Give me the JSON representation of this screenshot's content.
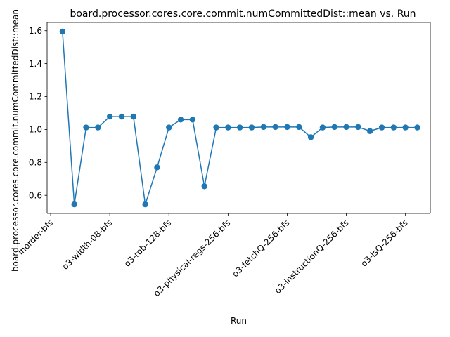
{
  "chart_data": {
    "type": "line",
    "title": "board.processor.cores.core.commit.numCommittedDist::mean vs. Run",
    "xlabel": "Run",
    "ylabel": "board.processor.cores.core.commit.numCommittedDist::mean",
    "line_color": "#1f77b4",
    "markers": true,
    "grid": false,
    "legend": "none",
    "ylim": [
      0.49,
      1.65
    ],
    "y_ticks": [
      0.6,
      0.8,
      1.0,
      1.2,
      1.4,
      1.6
    ],
    "y_tick_labels": [
      "0.6",
      "0.8",
      "1.0",
      "1.2",
      "1.4",
      "1.6"
    ],
    "x_ticks": [
      -1,
      4,
      9,
      14,
      19,
      24,
      29
    ],
    "x_tick_labels": [
      "inorder-bfs",
      "o3-width-08-bfs",
      "o3-rob-128-bfs",
      "o3-physical-regs-256-bfs",
      "o3-fetchQ-256-bfs",
      "o3-instructionQ-256-bfs",
      "o3-lsQ-256-bfs"
    ],
    "xlim": [
      -1.3,
      31.1
    ],
    "x": [
      0,
      1,
      2,
      3,
      4,
      5,
      6,
      7,
      8,
      9,
      10,
      11,
      12,
      13,
      14,
      15,
      16,
      17,
      18,
      19,
      20,
      21,
      22,
      23,
      24,
      25,
      26,
      27,
      28,
      29,
      30
    ],
    "values": [
      1.595,
      0.545,
      1.012,
      1.012,
      1.078,
      1.078,
      1.078,
      0.545,
      0.77,
      1.012,
      1.06,
      1.06,
      0.655,
      1.012,
      1.012,
      1.012,
      1.012,
      1.015,
      1.015,
      1.015,
      1.015,
      0.953,
      1.012,
      1.015,
      1.015,
      1.015,
      0.99,
      1.012,
      1.012,
      1.012,
      1.012
    ]
  }
}
